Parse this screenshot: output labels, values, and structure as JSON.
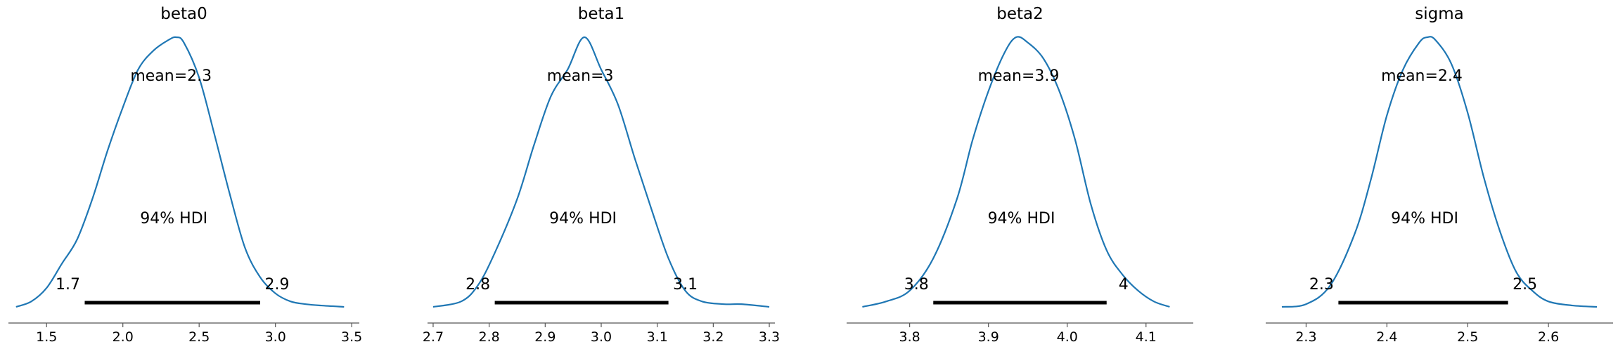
{
  "colors": {
    "density_line": "#1f77b4",
    "hdi_bar": "#000000",
    "axis": "#555555",
    "background": "#ffffff"
  },
  "chart_data": [
    {
      "type": "line",
      "title": "beta0",
      "mean_label": "mean=2.3",
      "hdi_label": "94% HDI",
      "hdi": [
        1.75,
        2.9
      ],
      "hdi_labels": [
        "1.7",
        "2.9"
      ],
      "xlim": [
        1.25,
        3.55
      ],
      "xticks": [
        1.5,
        2.0,
        2.5,
        3.0,
        3.5
      ],
      "xtick_labels": [
        "1.5",
        "2.0",
        "2.5",
        "3.0",
        "3.5"
      ],
      "density": {
        "x": [
          1.3,
          1.4,
          1.5,
          1.6,
          1.7,
          1.8,
          1.9,
          2.0,
          2.1,
          2.2,
          2.3,
          2.35,
          2.4,
          2.5,
          2.6,
          2.7,
          2.8,
          2.9,
          3.0,
          3.1,
          3.2,
          3.3,
          3.45
        ],
        "y": [
          0.0,
          0.02,
          0.07,
          0.16,
          0.25,
          0.4,
          0.58,
          0.74,
          0.88,
          0.95,
          0.99,
          1.0,
          0.98,
          0.85,
          0.64,
          0.42,
          0.22,
          0.11,
          0.05,
          0.02,
          0.01,
          0.005,
          0.0
        ]
      }
    },
    {
      "type": "line",
      "title": "beta1",
      "mean_label": "mean=3",
      "hdi_label": "94% HDI",
      "hdi": [
        2.81,
        3.12
      ],
      "hdi_labels": [
        "2.8",
        "3.1"
      ],
      "xlim": [
        2.69,
        3.31
      ],
      "xticks": [
        2.7,
        2.8,
        2.9,
        3.0,
        3.1,
        3.2,
        3.3
      ],
      "xtick_labels": [
        "2.7",
        "2.8",
        "2.9",
        "3.0",
        "3.1",
        "3.2",
        "3.3"
      ],
      "density": {
        "x": [
          2.7,
          2.75,
          2.78,
          2.81,
          2.85,
          2.88,
          2.91,
          2.94,
          2.97,
          3.0,
          3.03,
          3.06,
          3.09,
          3.12,
          3.15,
          3.18,
          3.22,
          3.25,
          3.3
        ],
        "y": [
          0.0,
          0.02,
          0.08,
          0.2,
          0.4,
          0.6,
          0.78,
          0.88,
          1.0,
          0.88,
          0.75,
          0.55,
          0.36,
          0.18,
          0.06,
          0.02,
          0.01,
          0.01,
          0.0
        ]
      }
    },
    {
      "type": "line",
      "title": "beta2",
      "mean_label": "mean=3.9",
      "hdi_label": "94% HDI",
      "hdi": [
        3.83,
        4.05
      ],
      "hdi_labels": [
        "3.8",
        "4"
      ],
      "xlim": [
        3.72,
        4.16
      ],
      "xticks": [
        3.8,
        3.9,
        4.0,
        4.1
      ],
      "xtick_labels": [
        "3.8",
        "3.9",
        "4.0",
        "4.1"
      ],
      "density": {
        "x": [
          3.74,
          3.77,
          3.8,
          3.83,
          3.86,
          3.88,
          3.9,
          3.92,
          3.935,
          3.95,
          3.97,
          3.99,
          4.01,
          4.03,
          4.05,
          4.07,
          4.09,
          4.11,
          4.13
        ],
        "y": [
          0.0,
          0.02,
          0.06,
          0.18,
          0.4,
          0.62,
          0.8,
          0.94,
          1.0,
          0.98,
          0.92,
          0.8,
          0.62,
          0.38,
          0.21,
          0.12,
          0.06,
          0.02,
          0.0
        ]
      }
    },
    {
      "type": "line",
      "title": "sigma",
      "mean_label": "mean=2.4",
      "hdi_label": "94% HDI",
      "hdi": [
        2.34,
        2.55
      ],
      "hdi_labels": [
        "2.3",
        "2.5"
      ],
      "xlim": [
        2.25,
        2.68
      ],
      "xticks": [
        2.3,
        2.4,
        2.5,
        2.6
      ],
      "xtick_labels": [
        "2.3",
        "2.4",
        "2.5",
        "2.6"
      ],
      "density": {
        "x": [
          2.27,
          2.3,
          2.33,
          2.36,
          2.38,
          2.4,
          2.42,
          2.44,
          2.45,
          2.46,
          2.48,
          2.5,
          2.52,
          2.54,
          2.56,
          2.58,
          2.6,
          2.63,
          2.66
        ],
        "y": [
          0.0,
          0.01,
          0.08,
          0.27,
          0.47,
          0.71,
          0.88,
          0.98,
          1.0,
          0.99,
          0.9,
          0.72,
          0.48,
          0.28,
          0.13,
          0.06,
          0.02,
          0.005,
          0.0
        ]
      }
    }
  ]
}
